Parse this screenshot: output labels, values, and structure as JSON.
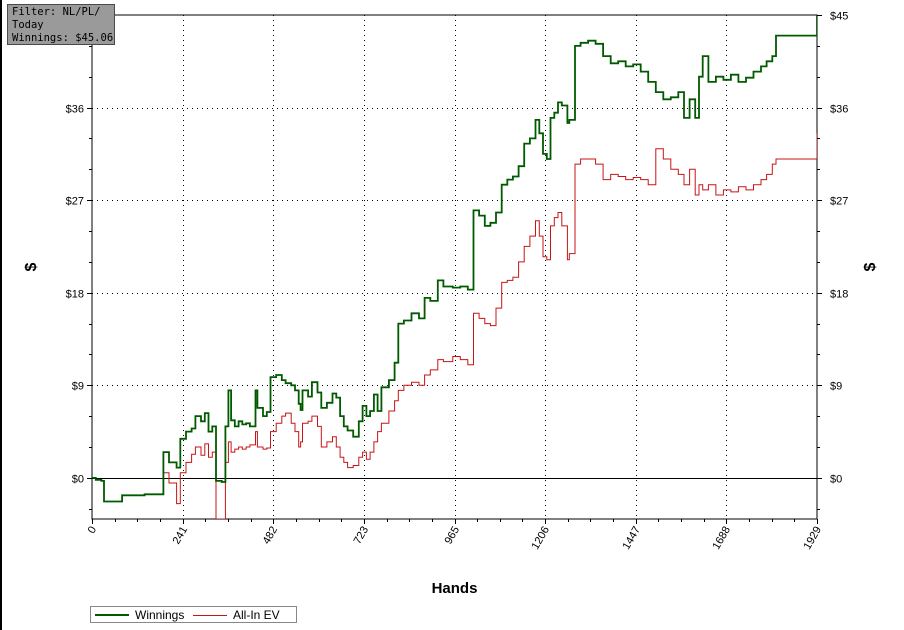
{
  "filter": {
    "line1": "Filter: NL/PL/",
    "line2": "Today",
    "line3": "Winnings: $45.06"
  },
  "legend": {
    "items": [
      {
        "label": "Winnings",
        "color": "#005a00"
      },
      {
        "label": "All-In EV",
        "color": "#c81414"
      }
    ]
  },
  "chart_data": {
    "type": "line",
    "xlabel": "Hands",
    "ylabel": "$",
    "xlim": [
      0,
      1929
    ],
    "ylim": [
      -4,
      45
    ],
    "x_ticks": [
      "0",
      "241",
      "482",
      "723",
      "965",
      "1206",
      "1447",
      "1688",
      "1929"
    ],
    "x_tick_values": [
      0,
      241,
      482,
      723,
      965,
      1206,
      1447,
      1688,
      1929
    ],
    "y_ticks": [
      "$0",
      "$9",
      "$18",
      "$27",
      "$36",
      "$45"
    ],
    "y_tick_values": [
      0,
      9,
      18,
      27,
      36,
      45
    ],
    "grid": true,
    "legend_position": "bottom-left",
    "series": [
      {
        "name": "Winnings",
        "color": "#005a00",
        "points": [
          [
            0,
            0
          ],
          [
            10,
            -0.2
          ],
          [
            25,
            -0.3
          ],
          [
            32,
            -2.3
          ],
          [
            60,
            -2.3
          ],
          [
            80,
            -1.7
          ],
          [
            110,
            -1.7
          ],
          [
            140,
            -1.6
          ],
          [
            180,
            -1.6
          ],
          [
            190,
            2.5
          ],
          [
            205,
            1.5
          ],
          [
            225,
            1.0
          ],
          [
            235,
            3.8
          ],
          [
            250,
            4.5
          ],
          [
            265,
            4.8
          ],
          [
            275,
            6.0
          ],
          [
            290,
            5.5
          ],
          [
            300,
            6.3
          ],
          [
            310,
            4.5
          ],
          [
            320,
            5.0
          ],
          [
            330,
            -0.3
          ],
          [
            345,
            -0.4
          ],
          [
            355,
            5.0
          ],
          [
            363,
            8.5
          ],
          [
            370,
            5.6
          ],
          [
            380,
            5.0
          ],
          [
            390,
            5.5
          ],
          [
            400,
            5.2
          ],
          [
            410,
            5.3
          ],
          [
            420,
            5.0
          ],
          [
            435,
            8.5
          ],
          [
            440,
            6.8
          ],
          [
            455,
            6.0
          ],
          [
            465,
            6.4
          ],
          [
            475,
            9.8
          ],
          [
            490,
            10.0
          ],
          [
            505,
            9.5
          ],
          [
            515,
            9.2
          ],
          [
            530,
            9.0
          ],
          [
            540,
            8.5
          ],
          [
            550,
            7.2
          ],
          [
            555,
            6.6
          ],
          [
            560,
            8.5
          ],
          [
            575,
            7.9
          ],
          [
            585,
            9.3
          ],
          [
            600,
            8.3
          ],
          [
            610,
            6.8
          ],
          [
            625,
            7.3
          ],
          [
            640,
            8.2
          ],
          [
            650,
            7.8
          ],
          [
            660,
            6.0
          ],
          [
            670,
            5.0
          ],
          [
            680,
            4.6
          ],
          [
            695,
            4.0
          ],
          [
            710,
            5.5
          ],
          [
            720,
            7.0
          ],
          [
            730,
            6.0
          ],
          [
            740,
            6.5
          ],
          [
            750,
            8.1
          ],
          [
            760,
            6.5
          ],
          [
            770,
            8.8
          ],
          [
            790,
            9.5
          ],
          [
            805,
            11.2
          ],
          [
            815,
            15.0
          ],
          [
            830,
            15.3
          ],
          [
            850,
            16.0
          ],
          [
            870,
            15.5
          ],
          [
            885,
            17.5
          ],
          [
            900,
            17.2
          ],
          [
            920,
            19.2
          ],
          [
            935,
            18.6
          ],
          [
            960,
            18.5
          ],
          [
            980,
            18.6
          ],
          [
            1000,
            18.3
          ],
          [
            1015,
            26.0
          ],
          [
            1030,
            25.5
          ],
          [
            1045,
            24.5
          ],
          [
            1060,
            24.8
          ],
          [
            1075,
            25.8
          ],
          [
            1090,
            28.5
          ],
          [
            1105,
            29.0
          ],
          [
            1120,
            29.3
          ],
          [
            1135,
            30.3
          ],
          [
            1150,
            32.5
          ],
          [
            1165,
            33.0
          ],
          [
            1180,
            34.8
          ],
          [
            1190,
            33.5
          ],
          [
            1200,
            31.5
          ],
          [
            1210,
            31.0
          ],
          [
            1220,
            35.0
          ],
          [
            1230,
            35.5
          ],
          [
            1240,
            36.5
          ],
          [
            1250,
            36.2
          ],
          [
            1265,
            34.5
          ],
          [
            1270,
            34.8
          ],
          [
            1285,
            42.0
          ],
          [
            1300,
            42.3
          ],
          [
            1320,
            42.5
          ],
          [
            1340,
            42.2
          ],
          [
            1360,
            41.0
          ],
          [
            1380,
            40.3
          ],
          [
            1400,
            40.5
          ],
          [
            1420,
            40.0
          ],
          [
            1440,
            40.2
          ],
          [
            1460,
            39.5
          ],
          [
            1480,
            38.5
          ],
          [
            1500,
            37.5
          ],
          [
            1520,
            36.8
          ],
          [
            1540,
            37.0
          ],
          [
            1560,
            37.5
          ],
          [
            1575,
            35.0
          ],
          [
            1590,
            36.8
          ],
          [
            1605,
            35.0
          ],
          [
            1615,
            39.0
          ],
          [
            1625,
            41.0
          ],
          [
            1640,
            38.5
          ],
          [
            1660,
            39.0
          ],
          [
            1680,
            38.7
          ],
          [
            1700,
            39.2
          ],
          [
            1720,
            38.5
          ],
          [
            1740,
            38.9
          ],
          [
            1760,
            39.5
          ],
          [
            1780,
            40.0
          ],
          [
            1795,
            40.5
          ],
          [
            1810,
            41.0
          ],
          [
            1820,
            43.0
          ],
          [
            1929,
            45.06
          ]
        ]
      },
      {
        "name": "All-In EV",
        "color": "#c81414",
        "points": [
          [
            0,
            0
          ],
          [
            10,
            -0.2
          ],
          [
            25,
            -0.3
          ],
          [
            32,
            -2.3
          ],
          [
            60,
            -2.3
          ],
          [
            80,
            -1.7
          ],
          [
            110,
            -1.7
          ],
          [
            140,
            -1.6
          ],
          [
            180,
            -1.6
          ],
          [
            190,
            0.5
          ],
          [
            205,
            -0.5
          ],
          [
            225,
            -2.5
          ],
          [
            235,
            0.5
          ],
          [
            250,
            1.5
          ],
          [
            265,
            2.3
          ],
          [
            275,
            3.0
          ],
          [
            290,
            2.2
          ],
          [
            300,
            3.3
          ],
          [
            310,
            2.0
          ],
          [
            320,
            2.5
          ],
          [
            330,
            -4.0
          ],
          [
            345,
            -4.0
          ],
          [
            355,
            1.5
          ],
          [
            363,
            3.5
          ],
          [
            370,
            2.5
          ],
          [
            380,
            2.8
          ],
          [
            390,
            3.0
          ],
          [
            400,
            2.8
          ],
          [
            410,
            3.0
          ],
          [
            420,
            3.2
          ],
          [
            435,
            4.5
          ],
          [
            440,
            3.0
          ],
          [
            455,
            2.8
          ],
          [
            465,
            2.9
          ],
          [
            475,
            4.5
          ],
          [
            490,
            5.3
          ],
          [
            505,
            6.0
          ],
          [
            515,
            6.3
          ],
          [
            530,
            5.3
          ],
          [
            540,
            4.5
          ],
          [
            550,
            3.0
          ],
          [
            555,
            3.5
          ],
          [
            560,
            5.3
          ],
          [
            575,
            5.5
          ],
          [
            585,
            6.0
          ],
          [
            600,
            5.0
          ],
          [
            610,
            3.0
          ],
          [
            625,
            3.5
          ],
          [
            640,
            4.0
          ],
          [
            650,
            3.0
          ],
          [
            660,
            2.0
          ],
          [
            670,
            1.5
          ],
          [
            680,
            1.0
          ],
          [
            695,
            1.2
          ],
          [
            710,
            2.0
          ],
          [
            720,
            2.5
          ],
          [
            730,
            1.8
          ],
          [
            740,
            2.5
          ],
          [
            750,
            3.5
          ],
          [
            760,
            4.5
          ],
          [
            770,
            5.3
          ],
          [
            790,
            6.5
          ],
          [
            805,
            7.5
          ],
          [
            815,
            8.5
          ],
          [
            830,
            9.0
          ],
          [
            850,
            9.3
          ],
          [
            870,
            9.0
          ],
          [
            885,
            10.0
          ],
          [
            900,
            10.5
          ],
          [
            920,
            11.5
          ],
          [
            935,
            11.3
          ],
          [
            960,
            11.8
          ],
          [
            980,
            11.5
          ],
          [
            1000,
            11.0
          ],
          [
            1015,
            16.0
          ],
          [
            1030,
            15.5
          ],
          [
            1045,
            15.0
          ],
          [
            1060,
            14.8
          ],
          [
            1075,
            16.5
          ],
          [
            1090,
            19.0
          ],
          [
            1105,
            19.2
          ],
          [
            1120,
            19.5
          ],
          [
            1135,
            21.0
          ],
          [
            1150,
            22.5
          ],
          [
            1165,
            23.5
          ],
          [
            1180,
            25.0
          ],
          [
            1190,
            23.5
          ],
          [
            1200,
            21.5
          ],
          [
            1210,
            21.2
          ],
          [
            1220,
            24.5
          ],
          [
            1230,
            25.3
          ],
          [
            1240,
            25.8
          ],
          [
            1250,
            24.5
          ],
          [
            1265,
            21.2
          ],
          [
            1270,
            21.8
          ],
          [
            1285,
            30.5
          ],
          [
            1300,
            31.0
          ],
          [
            1320,
            31.0
          ],
          [
            1340,
            30.5
          ],
          [
            1360,
            29.0
          ],
          [
            1380,
            29.5
          ],
          [
            1400,
            29.3
          ],
          [
            1420,
            29.0
          ],
          [
            1440,
            29.2
          ],
          [
            1460,
            29.0
          ],
          [
            1480,
            28.5
          ],
          [
            1500,
            32.0
          ],
          [
            1520,
            31.0
          ],
          [
            1540,
            30.0
          ],
          [
            1560,
            29.5
          ],
          [
            1575,
            28.5
          ],
          [
            1590,
            30.0
          ],
          [
            1605,
            27.5
          ],
          [
            1615,
            28.5
          ],
          [
            1625,
            28.0
          ],
          [
            1640,
            28.5
          ],
          [
            1660,
            27.5
          ],
          [
            1680,
            28.0
          ],
          [
            1700,
            27.8
          ],
          [
            1720,
            28.3
          ],
          [
            1740,
            28.0
          ],
          [
            1760,
            28.5
          ],
          [
            1780,
            29.0
          ],
          [
            1795,
            29.5
          ],
          [
            1810,
            30.5
          ],
          [
            1820,
            31.0
          ],
          [
            1929,
            33.5
          ]
        ]
      }
    ]
  }
}
